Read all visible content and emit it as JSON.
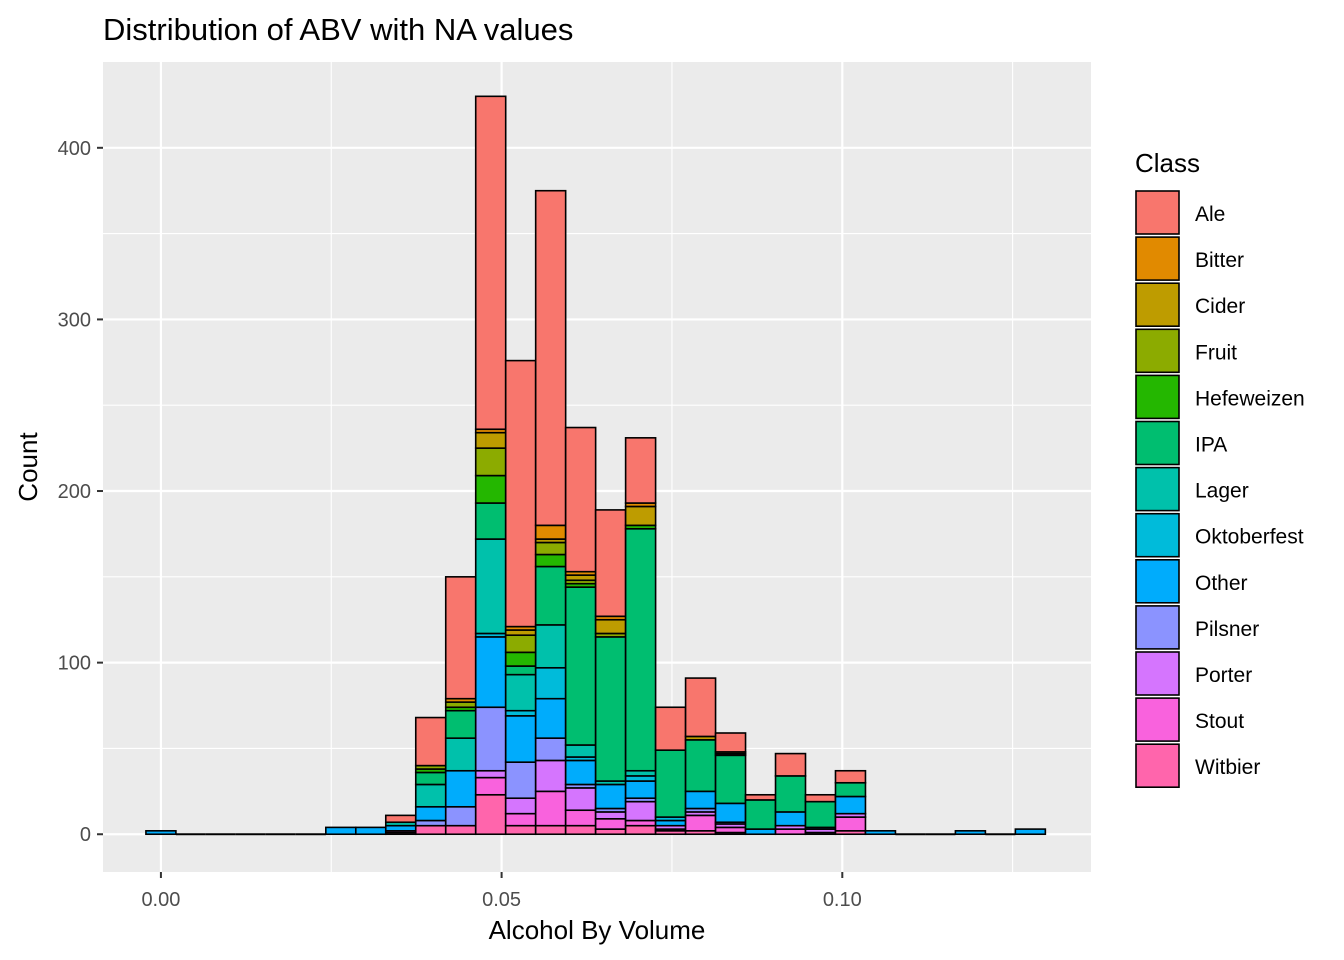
{
  "chart_data": {
    "type": "bar",
    "stacked": true,
    "title": "Distribution of ABV with NA values",
    "xlabel": "Alcohol By Volume",
    "ylabel": "Count",
    "xlim": [
      -0.0085,
      0.1365
    ],
    "ylim": [
      -22,
      450
    ],
    "x_ticks": [
      0.0,
      0.05,
      0.1
    ],
    "x_tick_labels": [
      "0.00",
      "0.05",
      "0.10"
    ],
    "y_ticks": [
      0,
      100,
      200,
      300,
      400
    ],
    "y_tick_labels": [
      "0",
      "100",
      "200",
      "300",
      "400"
    ],
    "bin_width": 0.0044,
    "grid": true,
    "legend_position": "right",
    "legend_title": "Class",
    "series": [
      {
        "name": "Ale",
        "color": "#F8766D"
      },
      {
        "name": "Bitter",
        "color": "#E18A00"
      },
      {
        "name": "Cider",
        "color": "#BE9C00"
      },
      {
        "name": "Fruit",
        "color": "#8CAB00"
      },
      {
        "name": "Hefeweizen",
        "color": "#24B700"
      },
      {
        "name": "IPA",
        "color": "#00BE70"
      },
      {
        "name": "Lager",
        "color": "#00C1AB"
      },
      {
        "name": "Oktoberfest",
        "color": "#00BBDA"
      },
      {
        "name": "Other",
        "color": "#00ACFC"
      },
      {
        "name": "Pilsner",
        "color": "#8B93FF"
      },
      {
        "name": "Porter",
        "color": "#D575FE"
      },
      {
        "name": "Stout",
        "color": "#F962DD"
      },
      {
        "name": "Witbier",
        "color": "#FF65AC"
      }
    ],
    "bins": [
      {
        "x": 0.0,
        "counts": {
          "Other": 2
        }
      },
      {
        "x": 0.0044,
        "counts": {}
      },
      {
        "x": 0.0088,
        "counts": {}
      },
      {
        "x": 0.0132,
        "counts": {}
      },
      {
        "x": 0.0176,
        "counts": {}
      },
      {
        "x": 0.022,
        "counts": {}
      },
      {
        "x": 0.0264,
        "counts": {
          "Other": 4
        }
      },
      {
        "x": 0.0308,
        "counts": {
          "Other": 4
        }
      },
      {
        "x": 0.0352,
        "counts": {
          "Ale": 4,
          "Lager": 2,
          "Other": 3,
          "Stout": 1,
          "Witbier": 1
        }
      },
      {
        "x": 0.0396,
        "counts": {
          "Ale": 28,
          "Fruit": 2,
          "Hefeweizen": 2,
          "IPA": 7,
          "Lager": 13,
          "Other": 8,
          "Pilsner": 3,
          "Witbier": 5
        }
      },
      {
        "x": 0.044,
        "counts": {
          "Ale": 71,
          "Bitter": 2,
          "Fruit": 3,
          "Hefeweizen": 2,
          "IPA": 16,
          "Lager": 19,
          "Other": 21,
          "Pilsner": 11,
          "Witbier": 5
        }
      },
      {
        "x": 0.0484,
        "counts": {
          "Ale": 194,
          "Bitter": 2,
          "Cider": 9,
          "Fruit": 16,
          "Hefeweizen": 16,
          "IPA": 21,
          "Lager": 55,
          "Oktoberfest": 2,
          "Other": 41,
          "Pilsner": 37,
          "Porter": 4,
          "Stout": 10,
          "Witbier": 23
        }
      },
      {
        "x": 0.0528,
        "counts": {
          "Ale": 155,
          "Bitter": 2,
          "Cider": 3,
          "Fruit": 10,
          "Hefeweizen": 8,
          "IPA": 5,
          "Lager": 21,
          "Oktoberfest": 3,
          "Other": 27,
          "Pilsner": 21,
          "Porter": 9,
          "Stout": 7,
          "Witbier": 5
        }
      },
      {
        "x": 0.0572,
        "counts": {
          "Ale": 195,
          "Bitter": 8,
          "Cider": 2,
          "Fruit": 7,
          "Hefeweizen": 7,
          "IPA": 34,
          "Lager": 25,
          "Oktoberfest": 18,
          "Other": 23,
          "Pilsner": 13,
          "Porter": 18,
          "Stout": 20,
          "Witbier": 5
        }
      },
      {
        "x": 0.0616,
        "counts": {
          "Ale": 84,
          "Bitter": 2,
          "Cider": 3,
          "Fruit": 2,
          "Hefeweizen": 2,
          "IPA": 92,
          "Lager": 7,
          "Oktoberfest": 2,
          "Other": 14,
          "Pilsner": 2,
          "Porter": 13,
          "Stout": 9,
          "Witbier": 5
        }
      },
      {
        "x": 0.066,
        "counts": {
          "Ale": 62,
          "Bitter": 2,
          "Cider": 8,
          "Fruit": 2,
          "IPA": 84,
          "Lager": 2,
          "Other": 14,
          "Pilsner": 2,
          "Porter": 4,
          "Stout": 6,
          "Witbier": 3
        }
      },
      {
        "x": 0.0704,
        "counts": {
          "Ale": 38,
          "Bitter": 2,
          "Cider": 11,
          "Hefeweizen": 2,
          "IPA": 141,
          "Lager": 3,
          "Oktoberfest": 3,
          "Other": 10,
          "Pilsner": 2,
          "Porter": 11,
          "Stout": 3,
          "Witbier": 5
        }
      },
      {
        "x": 0.0748,
        "counts": {
          "Ale": 25,
          "IPA": 39,
          "Oktoberfest": 2,
          "Other": 3,
          "Porter": 2,
          "Stout": 1,
          "Witbier": 2
        }
      },
      {
        "x": 0.0792,
        "counts": {
          "Ale": 34,
          "Cider": 2,
          "IPA": 30,
          "Other": 10,
          "Pilsner": 2,
          "Porter": 2,
          "Stout": 9,
          "Witbier": 2
        }
      },
      {
        "x": 0.0836,
        "counts": {
          "Ale": 11,
          "Fruit": 1,
          "Hefeweizen": 1,
          "IPA": 28,
          "Other": 11,
          "Pilsner": 1,
          "Porter": 2,
          "Stout": 3,
          "Witbier": 1
        }
      },
      {
        "x": 0.088,
        "counts": {
          "Ale": 3,
          "IPA": 17,
          "Other": 3
        }
      },
      {
        "x": 0.0924,
        "counts": {
          "Ale": 13,
          "IPA": 21,
          "Other": 8,
          "Porter": 2,
          "Stout": 3
        }
      },
      {
        "x": 0.0968,
        "counts": {
          "Ale": 4,
          "IPA": 15,
          "Other": 1,
          "Porter": 2,
          "Stout": 1
        }
      },
      {
        "x": 0.1012,
        "counts": {
          "Ale": 7,
          "IPA": 8,
          "Other": 10,
          "Porter": 2,
          "Stout": 8,
          "Witbier": 2
        }
      },
      {
        "x": 0.1056,
        "counts": {
          "Other": 2
        }
      },
      {
        "x": 0.11,
        "counts": {}
      },
      {
        "x": 0.1144,
        "counts": {}
      },
      {
        "x": 0.1188,
        "counts": {
          "Other": 2
        }
      },
      {
        "x": 0.1232,
        "counts": {}
      },
      {
        "x": 0.1276,
        "counts": {
          "Other": 3
        }
      }
    ]
  }
}
